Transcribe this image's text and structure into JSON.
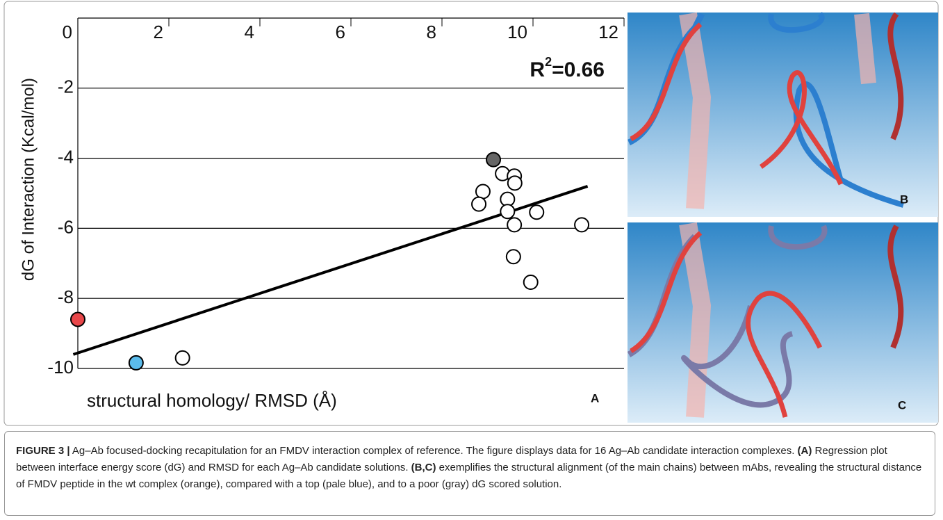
{
  "chart_data": {
    "type": "scatter",
    "x_label": "structural homology/ RMSD (Å)",
    "y_label": "dG of Interaction (Kcal/mol)",
    "annotation": {
      "base": "R",
      "sup": "2",
      "rest": "=0.66"
    },
    "panel_label": "A",
    "x": [
      0,
      1.28,
      2.3,
      9.13,
      9.33,
      9.59,
      9.6,
      8.9,
      9.44,
      8.81,
      9.44,
      10.08,
      9.59,
      11.07,
      9.57,
      9.95
    ],
    "values": [
      -8.6,
      -9.84,
      -9.7,
      -4.04,
      -4.44,
      -4.51,
      -4.71,
      -4.95,
      -5.17,
      -5.31,
      -5.52,
      -5.54,
      -5.9,
      -5.9,
      -6.81,
      -7.54
    ],
    "colors": [
      "#e8474a",
      "#5bbcec",
      "#ffffff",
      "#666666",
      "#ffffff",
      "#ffffff",
      "#ffffff",
      "#ffffff",
      "#ffffff",
      "#ffffff",
      "#ffffff",
      "#ffffff",
      "#ffffff",
      "#ffffff",
      "#ffffff",
      "#ffffff"
    ],
    "trendline": {
      "x": [
        -0.1,
        11.2
      ],
      "values": [
        -9.6,
        -4.8
      ],
      "color": "#000000"
    },
    "xlim": [
      0,
      12
    ],
    "xticks": [
      0,
      2,
      4,
      6,
      8,
      10,
      12
    ],
    "ylim": [
      -10,
      0
    ],
    "yticks": [
      -10,
      -8,
      -6,
      -4,
      -2
    ],
    "grid": true
  },
  "panels": {
    "b": "B",
    "c": "C"
  },
  "caption": {
    "label": "FIGURE 3 |",
    "text1": " Ag–Ab focused-docking recapitulation for an FMDV interaction complex of reference. The figure displays data for 16 Ag–Ab candidate interaction complexes. ",
    "bold1": "(A)",
    "text2": " Regression plot between interface energy score (dG) and RMSD for each Ag–Ab candidate solutions. ",
    "bold2": "(B,C)",
    "text3": " exemplifies the structural alignment (of the main chains) between mAbs, revealing the structural distance of FMDV peptide in the wt complex (orange), compared with a top (pale blue), and to a poor (gray) dG scored solution."
  }
}
